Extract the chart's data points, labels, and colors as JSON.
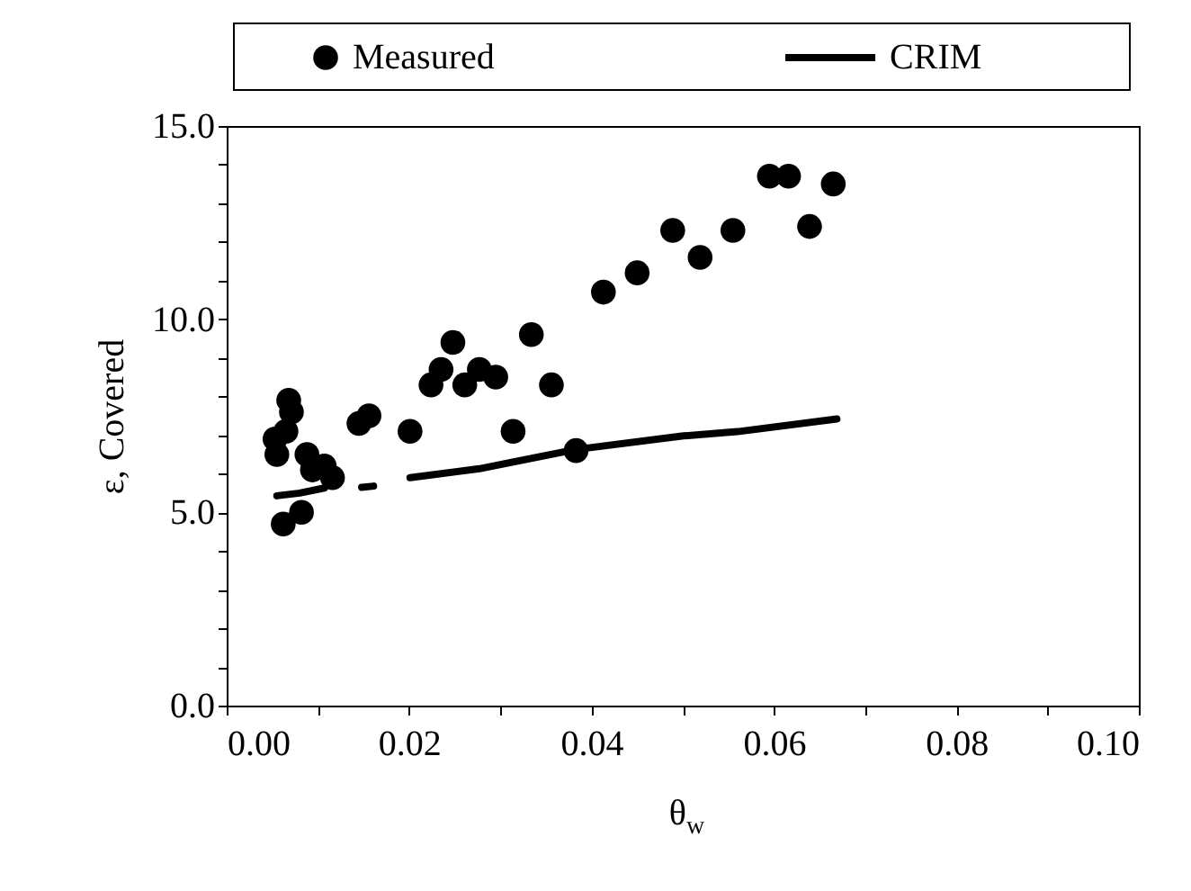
{
  "chart_data": {
    "type": "scatter",
    "xlabel": "θ$_{w}$",
    "ylabel": "ε, Covered",
    "xlim": [
      0,
      0.1
    ],
    "ylim": [
      0,
      15
    ],
    "xticks": [
      {
        "value": 0,
        "label": "0.00"
      },
      {
        "value": 0.01,
        "label": null
      },
      {
        "value": 0.02,
        "label": "0.02"
      },
      {
        "value": 0.03,
        "label": null
      },
      {
        "value": 0.04,
        "label": "0.04"
      },
      {
        "value": 0.05,
        "label": null
      },
      {
        "value": 0.06,
        "label": "0.06"
      },
      {
        "value": 0.07,
        "label": null
      },
      {
        "value": 0.08,
        "label": "0.08"
      },
      {
        "value": 0.09,
        "label": null
      },
      {
        "value": 0.1,
        "label": "0.10"
      }
    ],
    "yticks": [
      {
        "value": 0,
        "label": "0.0"
      },
      {
        "value": 1,
        "label": null
      },
      {
        "value": 2,
        "label": null
      },
      {
        "value": 3,
        "label": null
      },
      {
        "value": 4,
        "label": null
      },
      {
        "value": 5,
        "label": "5.0"
      },
      {
        "value": 6,
        "label": null
      },
      {
        "value": 7,
        "label": null
      },
      {
        "value": 8,
        "label": null
      },
      {
        "value": 9,
        "label": null
      },
      {
        "value": 10,
        "label": "10.0"
      },
      {
        "value": 11,
        "label": null
      },
      {
        "value": 12,
        "label": null
      },
      {
        "value": 13,
        "label": null
      },
      {
        "value": 14,
        "label": null
      },
      {
        "value": 15,
        "label": "15.0"
      }
    ],
    "legend": "top",
    "series": [
      {
        "name": "Measured",
        "type": "scatter",
        "marker": "circle",
        "color": "#000000",
        "x": [
          0.0068,
          0.0071,
          0.0065,
          0.0053,
          0.0055,
          0.0062,
          0.0082,
          0.0088,
          0.0094,
          0.0107,
          0.0116,
          0.0145,
          0.0156,
          0.0201,
          0.0224,
          0.0235,
          0.0248,
          0.0261,
          0.0277,
          0.0295,
          0.0314,
          0.0334,
          0.0356,
          0.0383,
          0.0413,
          0.045,
          0.0489,
          0.0519,
          0.0555,
          0.0595,
          0.0616,
          0.0639,
          0.0665
        ],
        "values": [
          7.9,
          7.6,
          7.1,
          6.9,
          6.5,
          4.7,
          5.0,
          6.5,
          6.1,
          6.2,
          5.9,
          7.3,
          7.5,
          7.1,
          8.3,
          8.7,
          9.4,
          8.3,
          8.7,
          8.5,
          7.1,
          9.6,
          8.3,
          6.6,
          10.7,
          11.2,
          12.3,
          11.6,
          12.3,
          13.7,
          13.7,
          12.4,
          13.5
        ]
      },
      {
        "name": "CRIM",
        "type": "line",
        "line_style": "solid",
        "color": "#000000",
        "x": [
          0.0055,
          0.008,
          0.0107,
          0.013,
          0.0148,
          0.0161,
          0.018,
          0.0201,
          0.0277,
          0.0383,
          0.0501,
          0.056,
          0.0669
        ],
        "values": [
          5.43,
          5.5,
          5.63,
          null,
          5.65,
          5.68,
          null,
          5.9,
          6.13,
          6.63,
          6.98,
          7.09,
          7.42
        ]
      }
    ]
  }
}
